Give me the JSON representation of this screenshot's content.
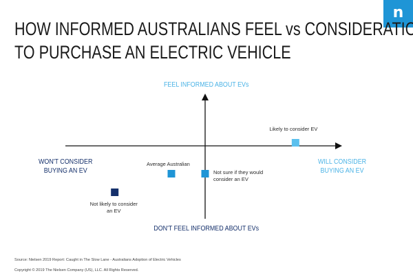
{
  "brand": {
    "logo_letter": "n",
    "logo_color": "#1f95d6"
  },
  "title": {
    "line1": "HOW INFORMED AUSTRALIANS FEEL vs CONSIDERATION",
    "line2": "TO PURCHASE AN ELECTRIC VEHICLE"
  },
  "chart_data": {
    "type": "scatter",
    "quadrant_labels": {
      "top": "FEEL INFORMED ABOUT EVs",
      "bottom": "DON'T FEEL INFORMED ABOUT EVs",
      "left": [
        "WON'T CONSIDER",
        "BUYING AN EV"
      ],
      "right": [
        "WILL CONSIDER",
        "BUYING AN EV"
      ]
    },
    "points": [
      {
        "label": [
          "Likely to consider EV"
        ],
        "x": 0.67,
        "y": 0.03,
        "color": "#5bc0ee"
      },
      {
        "label": [
          "Average Australian"
        ],
        "x": -0.25,
        "y": -0.27,
        "color": "#1f95d6"
      },
      {
        "label": [
          "Not sure if they would",
          "consider an EV"
        ],
        "x": 0.0,
        "y": -0.27,
        "color": "#1f95d6"
      },
      {
        "label": [
          "Not likely to consider",
          "an EV"
        ],
        "x": -0.67,
        "y": -0.45,
        "color": "#15306b"
      }
    ],
    "axis_colors": {
      "positive": "#4bb3e6",
      "negative": "#15306b",
      "line": "#111111"
    }
  },
  "footer": {
    "source": "Source: Nielsen 2019 Report: Caught in The Slow Lane - Australians Adoption of Electric Vehicles",
    "copyright": "Copyright © 2019 The Nielsen Company (US), LLC. All Rights Reserved."
  }
}
